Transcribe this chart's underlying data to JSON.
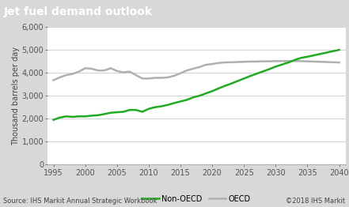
{
  "title": "Jet fuel demand outlook",
  "ylabel": "Thousand barrels per day",
  "source_left": "Source: IHS Markit Annual Strategic Workbook",
  "source_right": "©2018 IHS Markit",
  "title_bg_color": "#808080",
  "title_text_color": "#ffffff",
  "plot_bg_color": "#ffffff",
  "outer_bg_color": "#d8d8d8",
  "grid_color": "#c0c0c0",
  "non_oecd_color": "#22aa22",
  "oecd_color": "#b0b0b0",
  "ylim": [
    0,
    6000
  ],
  "yticks": [
    0,
    1000,
    2000,
    3000,
    4000,
    5000,
    6000
  ],
  "xticks": [
    1995,
    2000,
    2005,
    2010,
    2015,
    2020,
    2025,
    2030,
    2035,
    2040
  ],
  "xlim_left": 1994,
  "xlim_right": 2041,
  "non_oecd_x": [
    1995,
    1996,
    1997,
    1998,
    1999,
    2000,
    2001,
    2002,
    2003,
    2004,
    2005,
    2006,
    2007,
    2008,
    2009,
    2010,
    2011,
    2012,
    2013,
    2014,
    2015,
    2016,
    2017,
    2018,
    2019,
    2020,
    2021,
    2022,
    2023,
    2024,
    2025,
    2026,
    2027,
    2028,
    2029,
    2030,
    2031,
    2032,
    2033,
    2034,
    2035,
    2036,
    2037,
    2038,
    2039,
    2040
  ],
  "non_oecd_y": [
    1950,
    2050,
    2100,
    2080,
    2100,
    2100,
    2130,
    2150,
    2200,
    2260,
    2280,
    2300,
    2380,
    2380,
    2300,
    2430,
    2500,
    2540,
    2600,
    2680,
    2750,
    2820,
    2930,
    3000,
    3100,
    3200,
    3320,
    3430,
    3530,
    3640,
    3750,
    3860,
    3960,
    4060,
    4160,
    4270,
    4360,
    4450,
    4560,
    4650,
    4700,
    4760,
    4820,
    4880,
    4940,
    5000
  ],
  "oecd_x": [
    1995,
    1996,
    1997,
    1998,
    1999,
    2000,
    2001,
    2002,
    2003,
    2004,
    2005,
    2006,
    2007,
    2008,
    2009,
    2010,
    2011,
    2012,
    2013,
    2014,
    2015,
    2016,
    2017,
    2018,
    2019,
    2020,
    2021,
    2022,
    2023,
    2024,
    2025,
    2026,
    2027,
    2028,
    2029,
    2030,
    2031,
    2032,
    2033,
    2034,
    2035,
    2036,
    2037,
    2038,
    2039,
    2040
  ],
  "oecd_y": [
    3680,
    3800,
    3900,
    3950,
    4050,
    4200,
    4180,
    4100,
    4100,
    4200,
    4080,
    4020,
    4050,
    3900,
    3750,
    3750,
    3780,
    3780,
    3800,
    3870,
    3980,
    4100,
    4180,
    4250,
    4350,
    4380,
    4430,
    4450,
    4460,
    4470,
    4480,
    4490,
    4490,
    4500,
    4500,
    4510,
    4510,
    4510,
    4510,
    4510,
    4500,
    4490,
    4480,
    4470,
    4460,
    4450
  ],
  "line_width": 1.8,
  "font_size_title": 10,
  "font_size_axis": 7,
  "font_size_tick": 7,
  "font_size_source": 6,
  "font_size_legend": 7
}
